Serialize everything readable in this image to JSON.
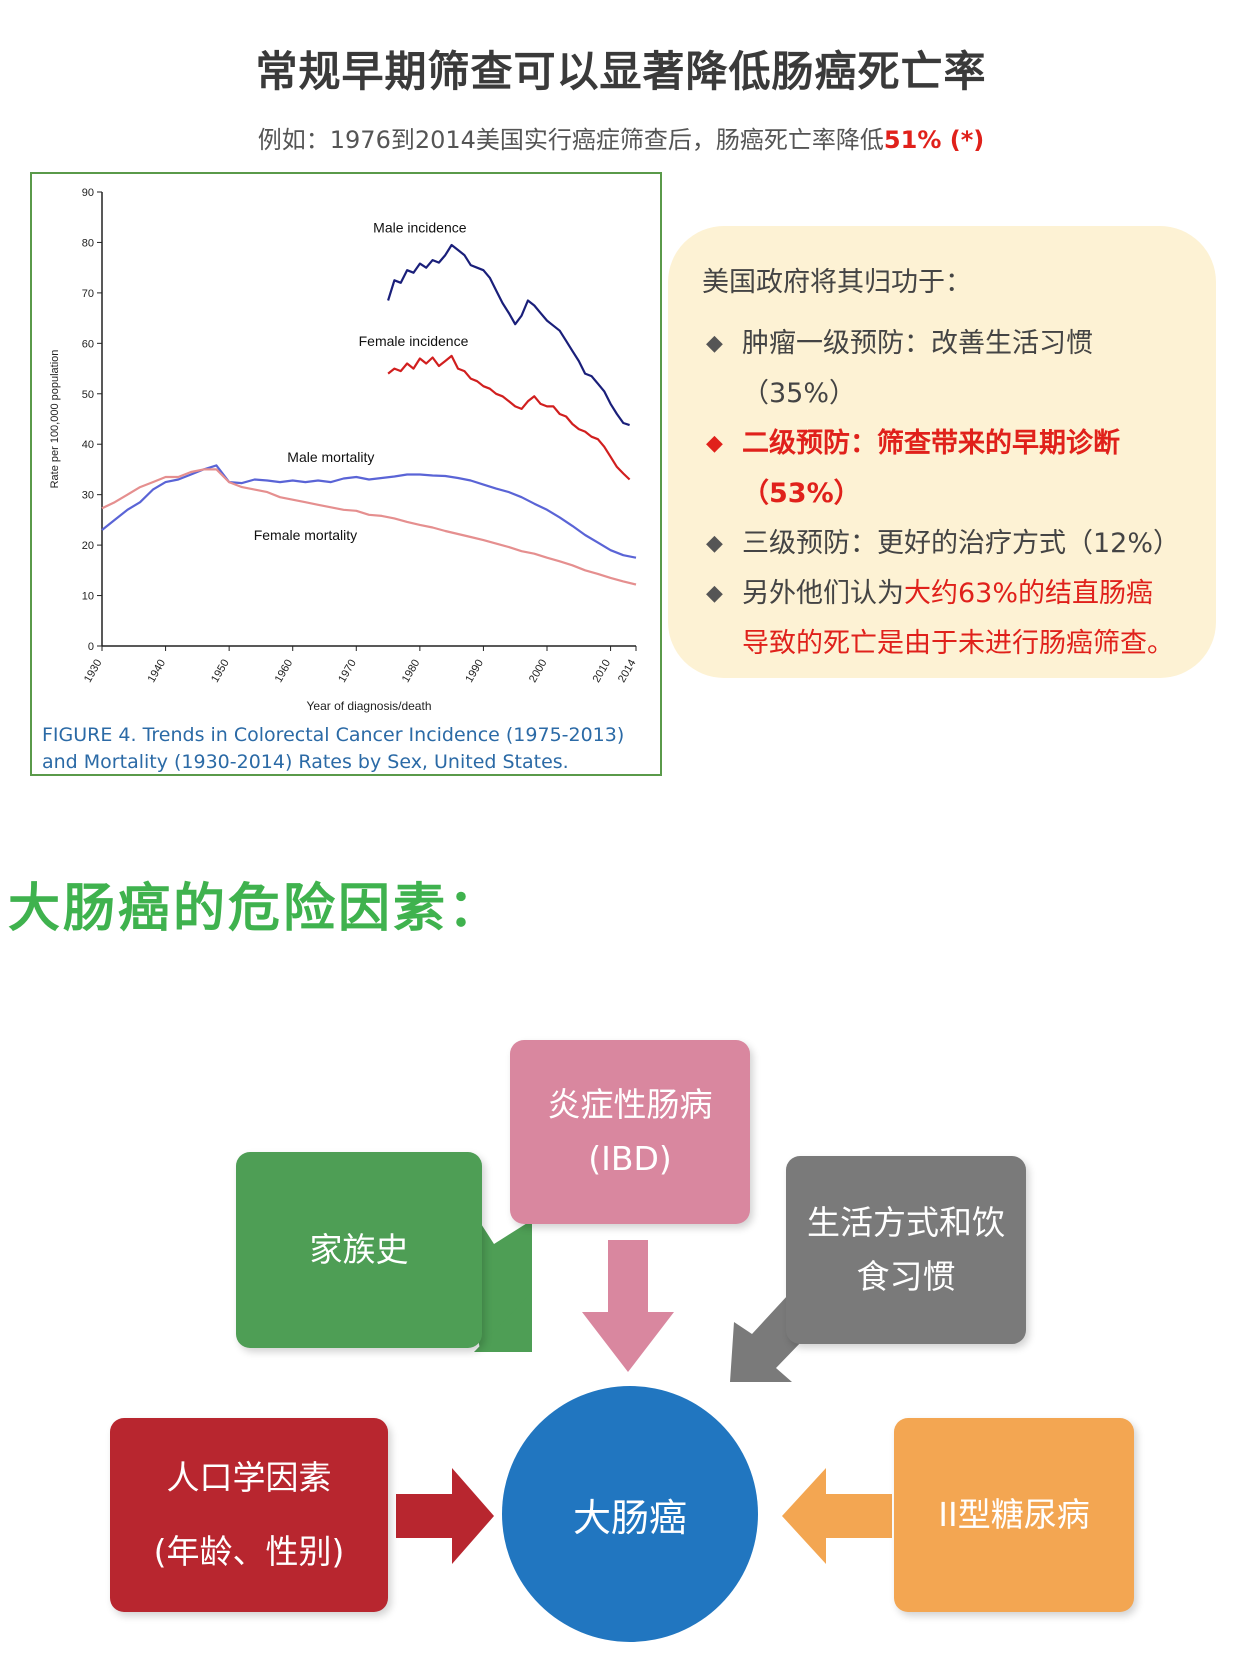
{
  "header": {
    "title": "常规早期筛查可以显著降低肠癌死亡率",
    "subtitle_prefix": "例如：1976到2014美国实行癌症筛查后，肠癌死亡率降低",
    "subtitle_highlight": "51% (*)"
  },
  "chart_data": {
    "type": "line",
    "xlabel": "Year of diagnosis/death",
    "ylabel": "Rate per 100,000 population",
    "xlim": [
      1930,
      2014
    ],
    "ylim": [
      0,
      90
    ],
    "x_ticks": [
      "1930",
      "1940",
      "1950",
      "1960",
      "1970",
      "1980",
      "1990",
      "2000",
      "2010",
      "2014"
    ],
    "y_ticks": [
      "0",
      "10",
      "20",
      "30",
      "40",
      "50",
      "60",
      "70",
      "80",
      "90"
    ],
    "grid": false,
    "series": [
      {
        "name": "Male incidence",
        "color": "#1a1f7a",
        "x": [
          1975,
          1976,
          1977,
          1978,
          1979,
          1980,
          1981,
          1982,
          1983,
          1984,
          1985,
          1986,
          1987,
          1988,
          1989,
          1990,
          1991,
          1992,
          1993,
          1994,
          1995,
          1996,
          1997,
          1998,
          1999,
          2000,
          2001,
          2002,
          2003,
          2004,
          2005,
          2006,
          2007,
          2008,
          2009,
          2010,
          2011,
          2012,
          2013
        ],
        "y": [
          68.5,
          72.5,
          72,
          74.5,
          74,
          75.8,
          75,
          76.5,
          76,
          77.5,
          79.5,
          78.5,
          77.5,
          75.5,
          75,
          74.5,
          73,
          70.5,
          68,
          66,
          63.8,
          65.5,
          68.5,
          67.5,
          66,
          64.5,
          63.5,
          62.5,
          60.5,
          58.5,
          56.5,
          54,
          53.5,
          52,
          50.5,
          48,
          46,
          44.2,
          43.8
        ]
      },
      {
        "name": "Female incidence",
        "color": "#d11f1f",
        "x": [
          1975,
          1976,
          1977,
          1978,
          1979,
          1980,
          1981,
          1982,
          1983,
          1984,
          1985,
          1986,
          1987,
          1988,
          1989,
          1990,
          1991,
          1992,
          1993,
          1994,
          1995,
          1996,
          1997,
          1998,
          1999,
          2000,
          2001,
          2002,
          2003,
          2004,
          2005,
          2006,
          2007,
          2008,
          2009,
          2010,
          2011,
          2012,
          2013
        ],
        "y": [
          54,
          55,
          54.5,
          56,
          55,
          57,
          56,
          57.2,
          55.5,
          56.5,
          57.5,
          55,
          54.5,
          53,
          52.5,
          51.5,
          51,
          50,
          49.5,
          48.5,
          47.5,
          47,
          48.5,
          49.5,
          48,
          47.5,
          47.5,
          46,
          45.5,
          44,
          43,
          42.5,
          41.5,
          41,
          39.5,
          37.5,
          35.5,
          34.2,
          33
        ]
      },
      {
        "name": "Male mortality",
        "color": "#5a64d6",
        "x": [
          1930,
          1932,
          1934,
          1936,
          1938,
          1940,
          1942,
          1944,
          1946,
          1948,
          1950,
          1952,
          1954,
          1956,
          1958,
          1960,
          1962,
          1964,
          1966,
          1968,
          1970,
          1972,
          1974,
          1976,
          1978,
          1980,
          1982,
          1984,
          1986,
          1988,
          1990,
          1992,
          1994,
          1996,
          1998,
          2000,
          2002,
          2004,
          2006,
          2008,
          2010,
          2012,
          2014
        ],
        "y": [
          23,
          25,
          27,
          28.5,
          31,
          32.5,
          33,
          34,
          35,
          35.8,
          32.5,
          32.3,
          33,
          32.8,
          32.5,
          32.8,
          32.5,
          32.8,
          32.5,
          33.2,
          33.5,
          33,
          33.3,
          33.6,
          34,
          34,
          33.8,
          33.7,
          33.3,
          32.8,
          32,
          31.2,
          30.5,
          29.5,
          28.2,
          27,
          25.5,
          23.8,
          22,
          20.5,
          19,
          18,
          17.5
        ]
      },
      {
        "name": "Female mortality",
        "color": "#e58f8f",
        "x": [
          1930,
          1932,
          1934,
          1936,
          1938,
          1940,
          1942,
          1944,
          1946,
          1948,
          1950,
          1952,
          1954,
          1956,
          1958,
          1960,
          1962,
          1964,
          1966,
          1968,
          1970,
          1972,
          1974,
          1976,
          1978,
          1980,
          1982,
          1984,
          1986,
          1988,
          1990,
          1992,
          1994,
          1996,
          1998,
          2000,
          2002,
          2004,
          2006,
          2008,
          2010,
          2012,
          2014
        ],
        "y": [
          27.3,
          28.5,
          30,
          31.5,
          32.5,
          33.5,
          33.5,
          34.5,
          35,
          35,
          32.5,
          31.5,
          31,
          30.5,
          29.5,
          29,
          28.5,
          28,
          27.5,
          27,
          26.8,
          26,
          25.8,
          25.3,
          24.6,
          24,
          23.5,
          22.8,
          22.2,
          21.6,
          21,
          20.3,
          19.6,
          18.8,
          18.3,
          17.5,
          16.8,
          16,
          15,
          14.3,
          13.5,
          12.8,
          12.2
        ]
      }
    ],
    "labels": [
      {
        "text": "Male incidence",
        "x": 1980,
        "y": 82
      },
      {
        "text": "Female incidence",
        "x": 1979,
        "y": 59.5
      },
      {
        "text": "Male mortality",
        "x": 1966,
        "y": 36.5
      },
      {
        "text": "Female mortality",
        "x": 1962,
        "y": 21
      }
    ],
    "caption_line1": "FIGURE 4. Trends in Colorectal Cancer Incidence (1975-2013)",
    "caption_line2": "and Mortality (1930-2014) Rates by Sex, United States."
  },
  "note": {
    "head": "美国政府将其归功于：",
    "bullet": "◆",
    "item1": "肿瘤一级预防：改善生活习惯",
    "item1b": "（35%）",
    "item2": "二级预防：筛查带来的早期诊断",
    "item2b": "（53%）",
    "item3": "三级预防：更好的治疗方式（12%）",
    "item4_prefix": "另外他们认为",
    "item4_red1": "大约63%的结直肠癌",
    "item4_red2": "导致的死亡是由于未进行肠癌筛查。"
  },
  "risk": {
    "title": "大肠癌的危险因素：",
    "center": "大肠癌",
    "ibd_line1": "炎症性肠病",
    "ibd_line2": "(IBD)",
    "family": "家族史",
    "lifestyle_line1": "生活方式和饮",
    "lifestyle_line2": "食习惯",
    "demo_line1": "人口学因素",
    "demo_line2": "(年龄、性别)",
    "diabetes": "II型糖尿病",
    "colors": {
      "center": "#2176c0",
      "ibd": "#d9879f",
      "family": "#4e9e55",
      "lifestyle": "#7a7a7a",
      "demo": "#b8262f",
      "diabetes": "#f3a652"
    }
  }
}
